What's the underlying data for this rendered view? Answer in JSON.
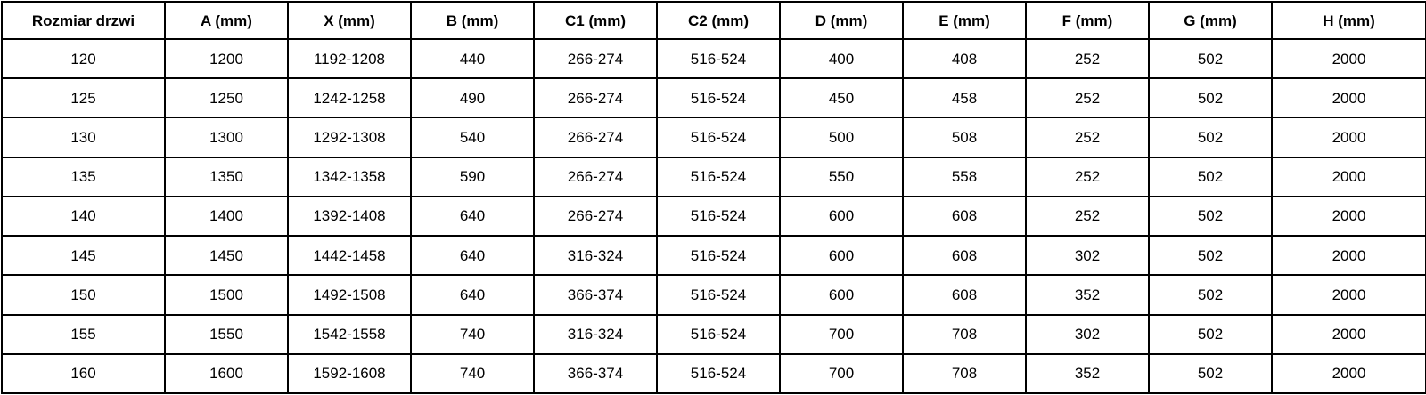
{
  "chart_data": {
    "type": "table",
    "columns": [
      "Rozmiar drzwi",
      "A (mm)",
      "X (mm)",
      "B (mm)",
      "C1 (mm)",
      "C2 (mm)",
      "D (mm)",
      "E (mm)",
      "F (mm)",
      "G (mm)",
      "H (mm)"
    ],
    "rows": [
      [
        "120",
        "1200",
        "1192-1208",
        "440",
        "266-274",
        "516-524",
        "400",
        "408",
        "252",
        "502",
        "2000"
      ],
      [
        "125",
        "1250",
        "1242-1258",
        "490",
        "266-274",
        "516-524",
        "450",
        "458",
        "252",
        "502",
        "2000"
      ],
      [
        "130",
        "1300",
        "1292-1308",
        "540",
        "266-274",
        "516-524",
        "500",
        "508",
        "252",
        "502",
        "2000"
      ],
      [
        "135",
        "1350",
        "1342-1358",
        "590",
        "266-274",
        "516-524",
        "550",
        "558",
        "252",
        "502",
        "2000"
      ],
      [
        "140",
        "1400",
        "1392-1408",
        "640",
        "266-274",
        "516-524",
        "600",
        "608",
        "252",
        "502",
        "2000"
      ],
      [
        "145",
        "1450",
        "1442-1458",
        "640",
        "316-324",
        "516-524",
        "600",
        "608",
        "302",
        "502",
        "2000"
      ],
      [
        "150",
        "1500",
        "1492-1508",
        "640",
        "366-374",
        "516-524",
        "600",
        "608",
        "352",
        "502",
        "2000"
      ],
      [
        "155",
        "1550",
        "1542-1558",
        "740",
        "316-324",
        "516-524",
        "700",
        "708",
        "302",
        "502",
        "2000"
      ],
      [
        "160",
        "1600",
        "1592-1608",
        "740",
        "366-374",
        "516-524",
        "700",
        "708",
        "352",
        "502",
        "2000"
      ]
    ],
    "layout": {
      "grid": true,
      "header_row": true,
      "first_column_label": "Rozmiar drzwi"
    }
  },
  "colors": {
    "border": "#000000",
    "text": "#000000",
    "background": "#ffffff"
  }
}
